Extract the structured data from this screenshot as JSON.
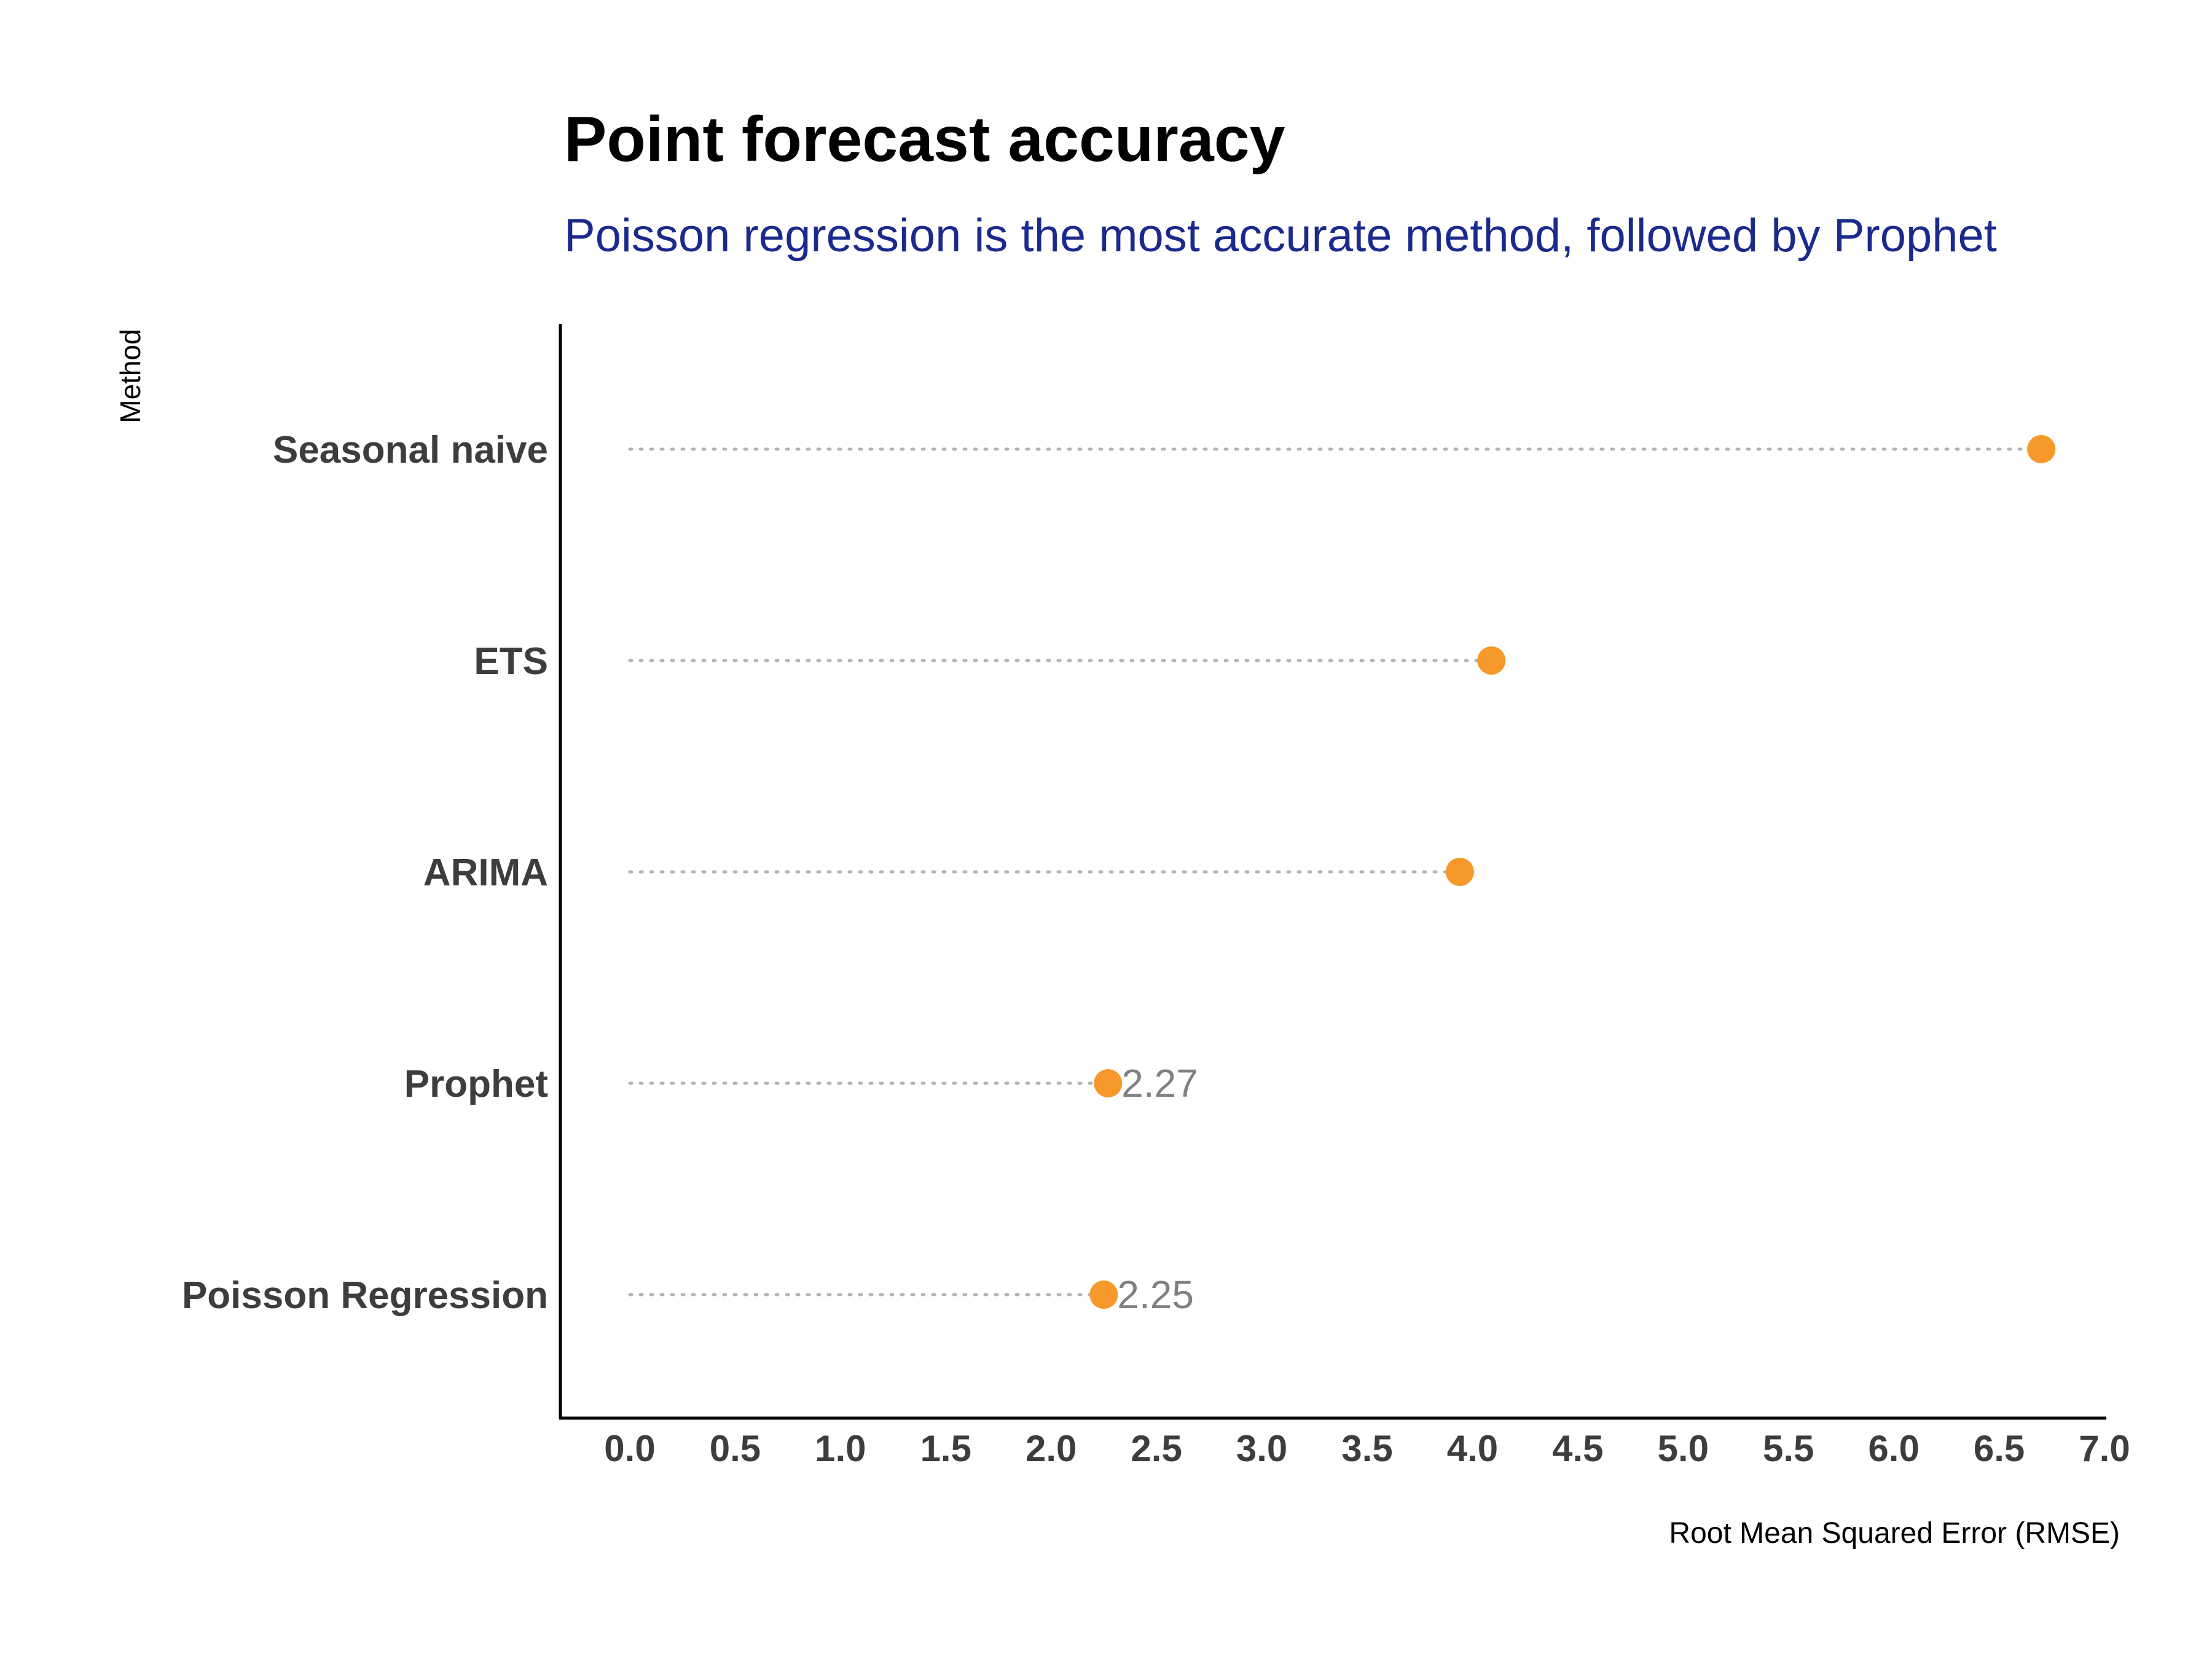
{
  "chart_data": {
    "type": "scatter",
    "style": "dot-plot",
    "title": "Point forecast accuracy",
    "subtitle": "Poisson regression is the most accurate method, followed by Prophet",
    "xlabel": "Root Mean Squared Error (RMSE)",
    "ylabel": "Method",
    "xlim": [
      0.0,
      7.0
    ],
    "x_ticks": [
      "0.0",
      "0.5",
      "1.0",
      "1.5",
      "2.0",
      "2.5",
      "3.0",
      "3.5",
      "4.0",
      "4.5",
      "5.0",
      "5.5",
      "6.0",
      "6.5",
      "7.0"
    ],
    "categories": [
      "Seasonal naive",
      "ETS",
      "ARIMA",
      "Prophet",
      "Poisson Regression"
    ],
    "values": [
      6.7,
      4.09,
      3.94,
      2.27,
      2.25
    ],
    "data_labels": [
      "",
      "",
      "",
      "2.27",
      "2.25"
    ],
    "grid": false,
    "colors": {
      "point": "#f7982a",
      "leader_line": "#b3b3b3",
      "data_label": "#808080",
      "category_label": "#3d3d3d",
      "tick_label": "#3d3d3d",
      "axis_line": "#000000",
      "subtitle": "#1a2a8c"
    }
  }
}
